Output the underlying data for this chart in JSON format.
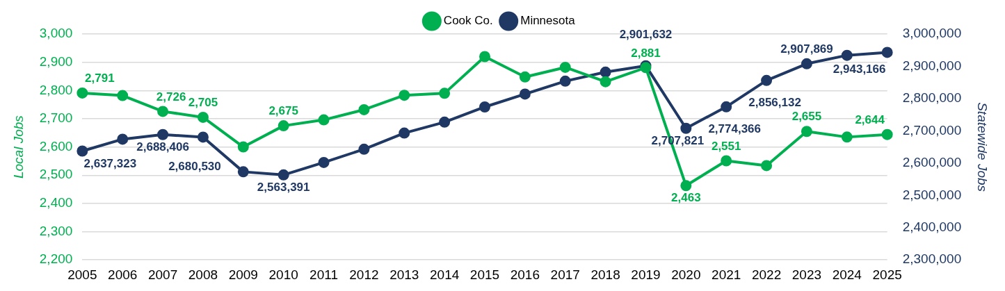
{
  "chart_data": {
    "type": "line",
    "ylabel": "Local Jobs",
    "y2label": "Statewide Jobs",
    "categories": [
      "2005",
      "2006",
      "2007",
      "2008",
      "2009",
      "2010",
      "2011",
      "2012",
      "2013",
      "2014",
      "2015",
      "2016",
      "2017",
      "2018",
      "2019",
      "2020",
      "2021",
      "2022",
      "2023",
      "2024",
      "2025"
    ],
    "series": [
      {
        "name": "Cook Co.",
        "color": "#00b050",
        "values": [
          2791,
          2782,
          2726,
          2705,
          2600,
          2675,
          2696,
          2732,
          2783,
          2790,
          2920,
          2848,
          2882,
          2831,
          2881,
          2463,
          2551,
          2534,
          2655,
          2635,
          2644
        ],
        "value_labels": [
          "2,791",
          null,
          "2,726",
          "2,705",
          null,
          "2,675",
          null,
          null,
          null,
          null,
          null,
          null,
          null,
          null,
          "2,881",
          "2,463",
          "2,551",
          null,
          "2,655",
          null,
          "2,644"
        ]
      },
      {
        "name": "Minnesota",
        "color": "#1f3864",
        "axis": "y2",
        "values": [
          2637323,
          2674000,
          2688406,
          2680530,
          2573000,
          2563391,
          2602000,
          2643000,
          2693000,
          2727000,
          2774000,
          2814000,
          2854000,
          2882000,
          2901632,
          2707821,
          2774366,
          2856132,
          2907869,
          2934000,
          2943166
        ],
        "value_labels": [
          "2,637,323",
          null,
          "2,688,406",
          "2,680,530",
          null,
          "2,563,391",
          null,
          null,
          null,
          null,
          null,
          null,
          null,
          null,
          "2,901,632",
          "2,707,821",
          "2,774,366",
          "2,856,132",
          "2,907,869",
          null,
          "2,943,166"
        ]
      }
    ],
    "ylim": [
      2200,
      3000
    ],
    "yticks": [
      {
        "value": 2200,
        "label": "2,200"
      },
      {
        "value": 2300,
        "label": "2,300"
      },
      {
        "value": 2400,
        "label": "2,400"
      },
      {
        "value": 2500,
        "label": "2,500"
      },
      {
        "value": 2600,
        "label": "2,600"
      },
      {
        "value": 2700,
        "label": "2,700"
      },
      {
        "value": 2800,
        "label": "2,800"
      },
      {
        "value": 2900,
        "label": "2,900"
      },
      {
        "value": 3000,
        "label": "3,000"
      }
    ],
    "y2lim": [
      2300000,
      3000000
    ],
    "y2ticks": [
      {
        "value": 2300000,
        "label": "2,300,000"
      },
      {
        "value": 2400000,
        "label": "2,400,000"
      },
      {
        "value": 2500000,
        "label": "2,500,000"
      },
      {
        "value": 2600000,
        "label": "2,600,000"
      },
      {
        "value": 2700000,
        "label": "2,700,000"
      },
      {
        "value": 2800000,
        "label": "2,800,000"
      },
      {
        "value": 2900000,
        "label": "2,900,000"
      },
      {
        "value": 3000000,
        "label": "3,000,000"
      }
    ],
    "grid": "y",
    "legend": "top",
    "marker": "circle",
    "line_style": "solid"
  }
}
